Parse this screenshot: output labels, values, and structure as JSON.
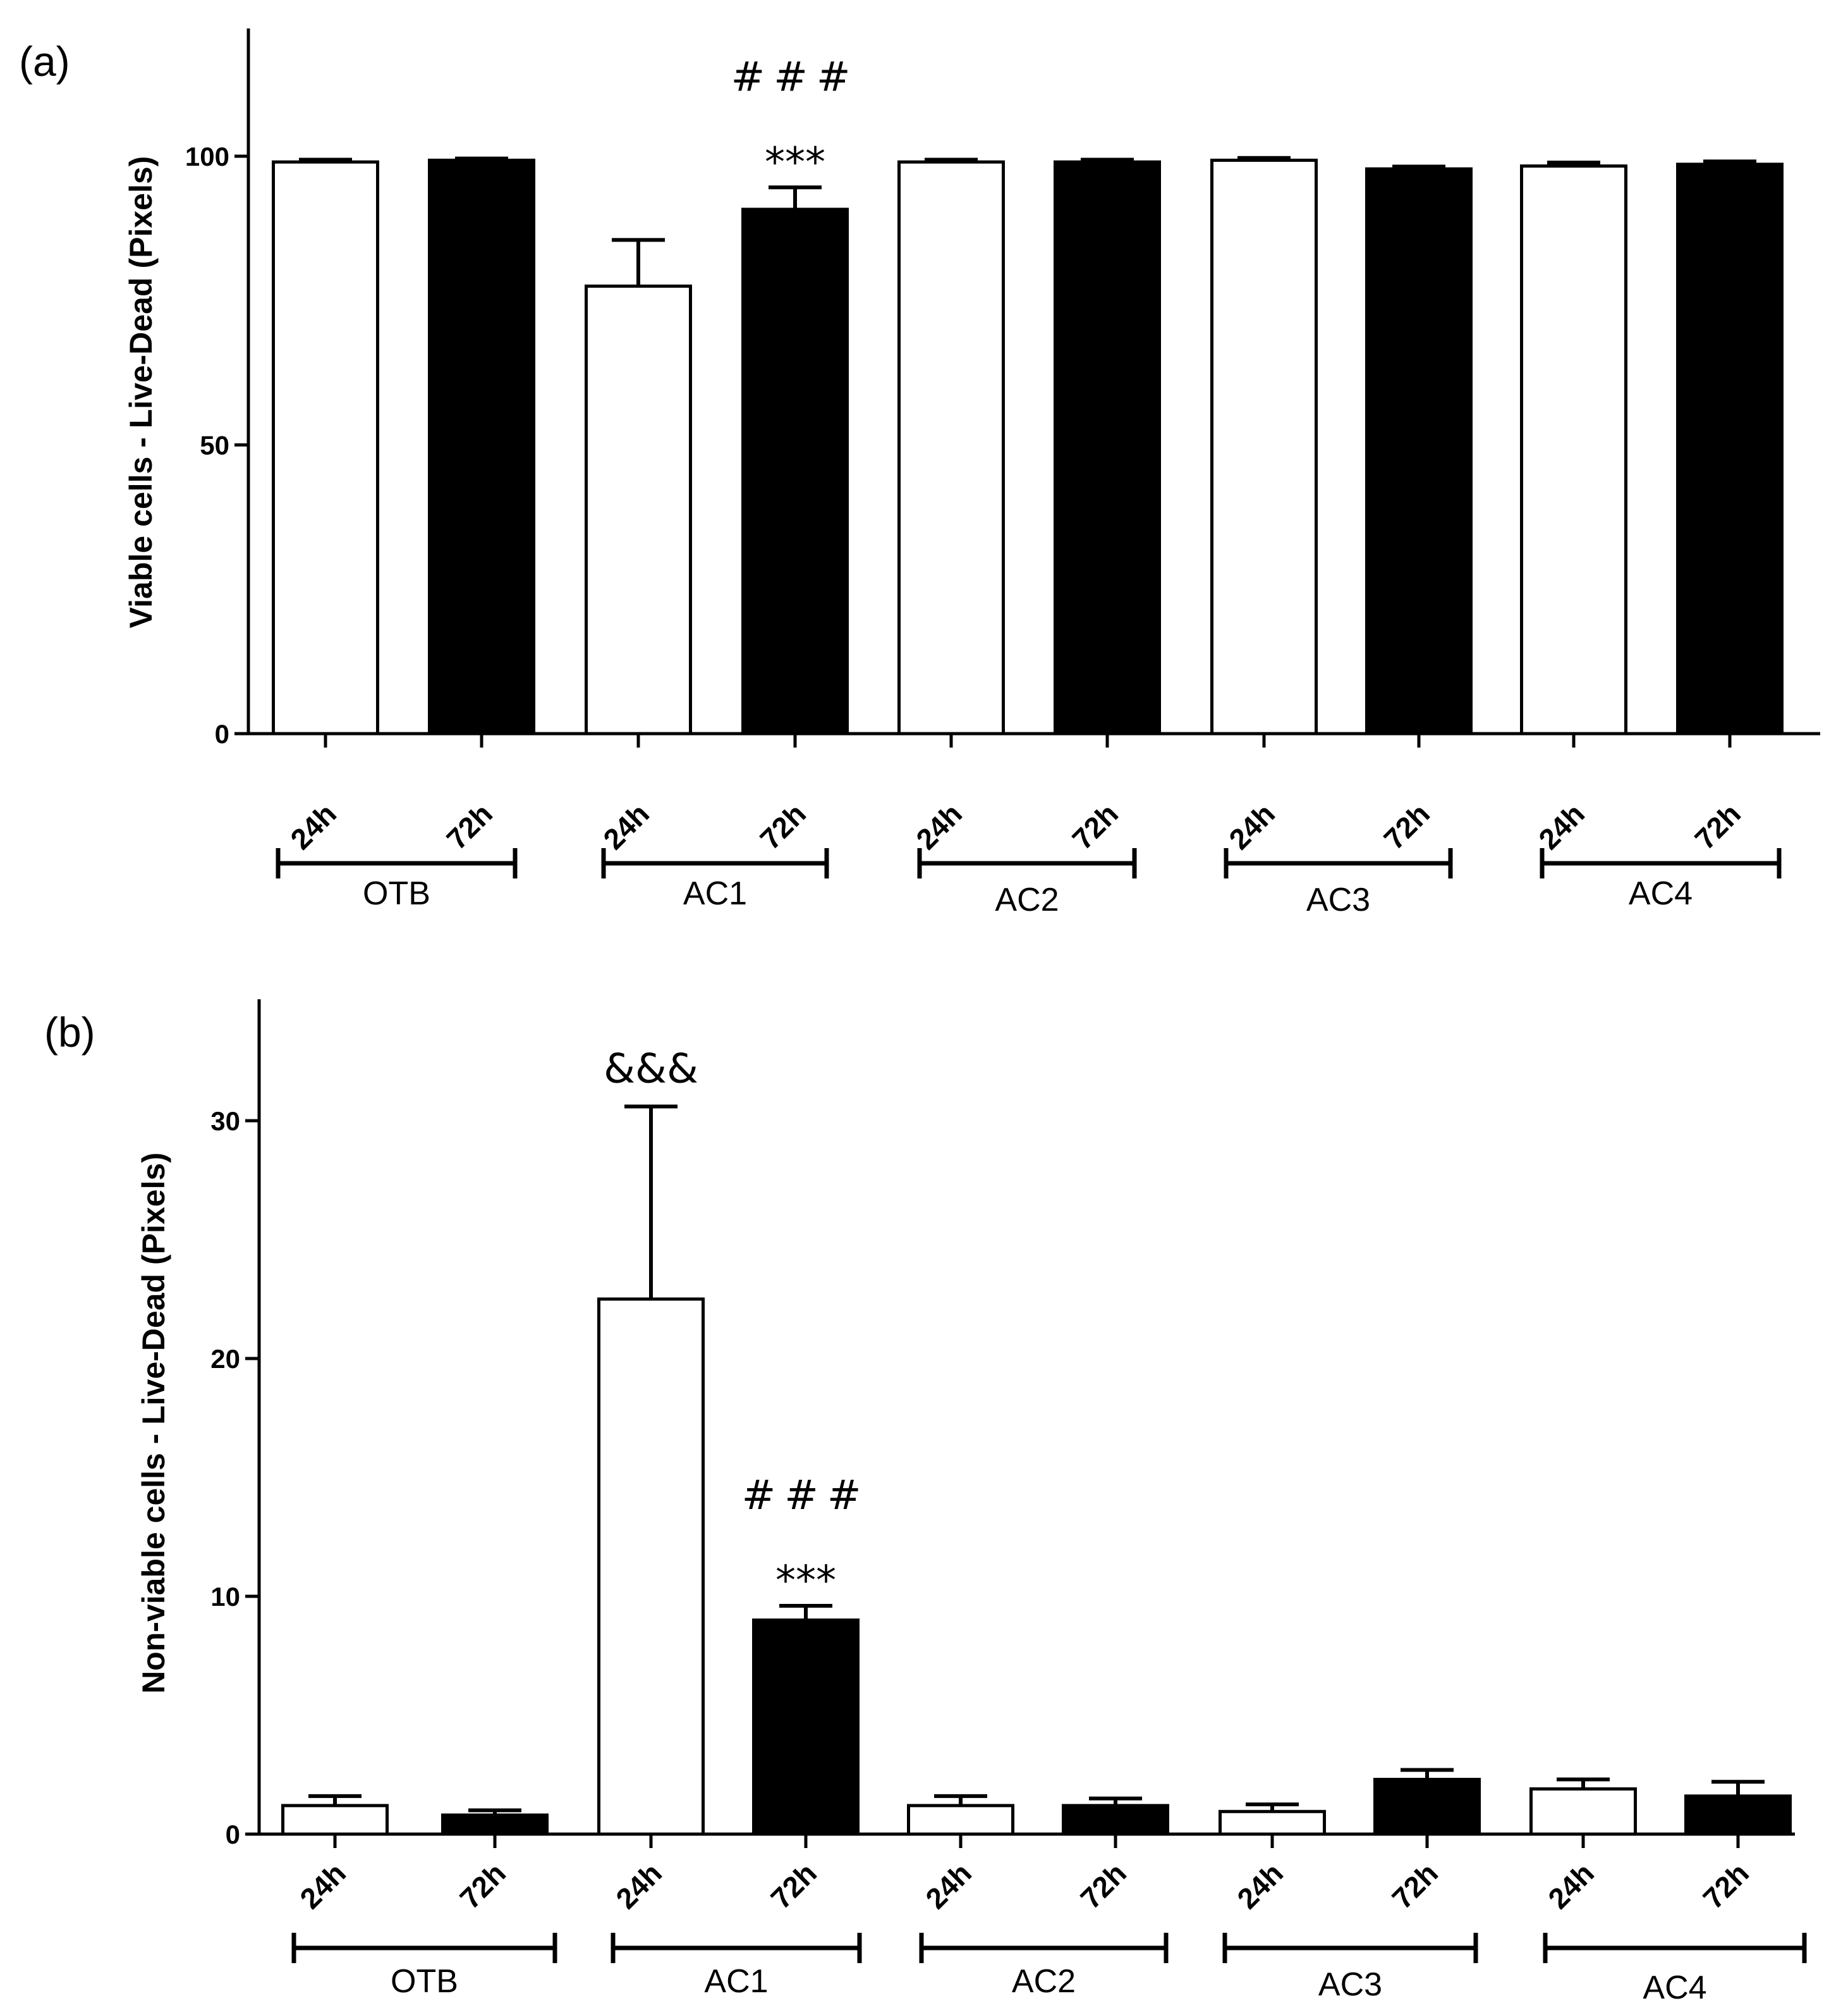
{
  "chart_data": [
    {
      "type": "bar",
      "panel_label": "(a)",
      "ylabel": "Viable cells - Live-Dead (Pixels)",
      "ylim": [
        0,
        120
      ],
      "yticks": [
        0,
        50,
        100
      ],
      "groups": [
        "OTB",
        "AC1",
        "AC2",
        "AC3",
        "AC4"
      ],
      "timepoints": [
        "24h",
        "72h"
      ],
      "series": [
        {
          "name": "24h",
          "color": "#ffffff",
          "values": [
            99,
            77.5,
            99,
            99.3,
            98.3
          ],
          "errors": [
            0.4,
            8,
            0.4,
            0.4,
            0.6
          ]
        },
        {
          "name": "72h",
          "color": "#000000",
          "values": [
            99.3,
            90.8,
            99,
            97.8,
            98.6
          ],
          "errors": [
            0.3,
            3.8,
            0.4,
            0.4,
            0.5
          ]
        }
      ],
      "annotations": [
        {
          "text": "***",
          "group": 1,
          "series": 1,
          "level": 1
        },
        {
          "text": "###",
          "group": 1,
          "series": 1,
          "level": 2
        }
      ]
    },
    {
      "type": "bar",
      "panel_label": "(b)",
      "ylabel": "Non-viable cells - Live-Dead (Pixels)",
      "ylim": [
        0,
        35
      ],
      "yticks": [
        0,
        10,
        20,
        30
      ],
      "groups": [
        "OTB",
        "AC1",
        "AC2",
        "AC3",
        "AC4"
      ],
      "timepoints": [
        "24h",
        "72h"
      ],
      "series": [
        {
          "name": "24h",
          "color": "#ffffff",
          "values": [
            1.2,
            22.5,
            1.2,
            0.95,
            1.9
          ],
          "errors": [
            0.4,
            8.1,
            0.4,
            0.3,
            0.4
          ]
        },
        {
          "name": "72h",
          "color": "#000000",
          "values": [
            0.8,
            9,
            1.2,
            2.3,
            1.6
          ],
          "errors": [
            0.2,
            0.6,
            0.3,
            0.4,
            0.6
          ]
        }
      ],
      "annotations": [
        {
          "text": "&&&",
          "group": 1,
          "series": 0,
          "level": 1
        },
        {
          "text": "***",
          "group": 1,
          "series": 1,
          "level": 1
        },
        {
          "text": "###",
          "group": 1,
          "series": 1,
          "level": 2
        }
      ]
    }
  ]
}
